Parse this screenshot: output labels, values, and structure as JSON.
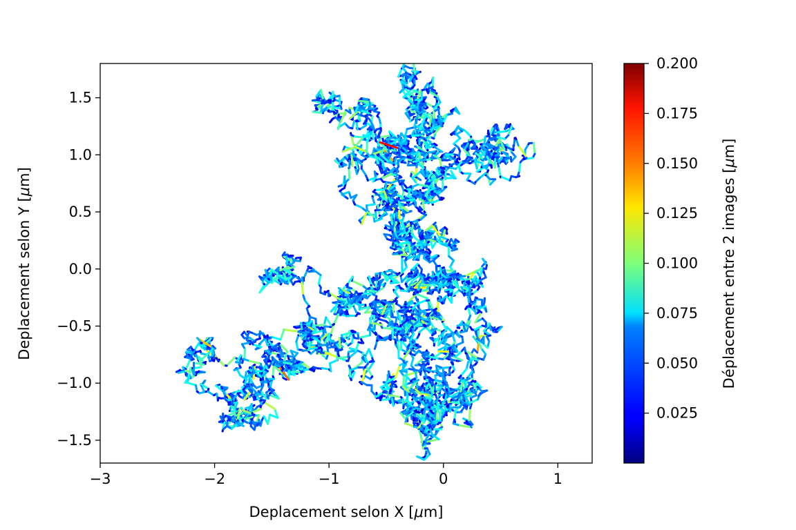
{
  "chart_data": {
    "type": "line",
    "title": "",
    "xlabel_text": "Deplacement selon X [",
    "xlabel_unit": "m]",
    "ylabel_text": "Deplacement selon Y [",
    "ylabel_unit": "m]",
    "mu": "μ",
    "xlim": [
      -3,
      1.3
    ],
    "ylim": [
      -1.7,
      1.8
    ],
    "x_ticks": [
      -3,
      -2,
      -1,
      0,
      1
    ],
    "x_tick_labels": [
      "−3",
      "−2",
      "−1",
      "0",
      "1"
    ],
    "y_ticks": [
      -1.5,
      -1.0,
      -0.5,
      0.0,
      0.5,
      1.0,
      1.5
    ],
    "y_tick_labels": [
      "−1.5",
      "−1.0",
      "−0.5",
      "0.0",
      "0.5",
      "1.0",
      "1.5"
    ],
    "colorbar": {
      "label_text": "Déplacement entre 2 images [",
      "label_unit": "m]",
      "colormap": "jet",
      "range": [
        0.0,
        0.2
      ],
      "ticks": [
        0.025,
        0.05,
        0.075,
        0.1,
        0.125,
        0.15,
        0.175,
        0.2
      ],
      "tick_labels": [
        "0.025",
        "0.050",
        "0.075",
        "0.100",
        "0.125",
        "0.150",
        "0.175",
        "0.200"
      ]
    },
    "trajectory": {
      "description_points": [
        [
          -0.6,
          -0.7
        ],
        [
          -0.2,
          -0.55
        ],
        [
          0.1,
          -0.8
        ],
        [
          -0.1,
          -1.2
        ],
        [
          -0.4,
          -1.0
        ],
        [
          -0.3,
          -0.4
        ],
        [
          0.2,
          -0.3
        ],
        [
          0.4,
          -0.2
        ],
        [
          0.3,
          -0.6
        ],
        [
          0.0,
          -0.2
        ],
        [
          -0.3,
          0.1
        ],
        [
          -0.7,
          -0.1
        ],
        [
          -1.0,
          -0.3
        ],
        [
          -1.3,
          -0.1
        ],
        [
          -1.5,
          0.0
        ],
        [
          -1.1,
          -0.6
        ],
        [
          -0.7,
          -0.8
        ],
        [
          -0.4,
          -1.2
        ],
        [
          -0.2,
          -1.5
        ],
        [
          0.1,
          -1.4
        ],
        [
          0.2,
          -1.1
        ],
        [
          -0.1,
          -0.9
        ],
        [
          -0.5,
          -0.5
        ],
        [
          -0.9,
          -0.4
        ],
        [
          -1.2,
          -0.55
        ],
        [
          -1.6,
          -0.6
        ],
        [
          -2.0,
          -0.7
        ],
        [
          -2.2,
          -0.8
        ],
        [
          -1.9,
          -1.2
        ],
        [
          -1.6,
          -1.1
        ],
        [
          -1.4,
          -0.85
        ],
        [
          -1.7,
          -0.95
        ],
        [
          -2.0,
          -1.3
        ],
        [
          -1.7,
          -1.0
        ],
        [
          -1.3,
          -0.8
        ],
        [
          -0.8,
          -0.6
        ],
        [
          -0.4,
          -0.3
        ],
        [
          -0.2,
          0.0
        ],
        [
          -0.3,
          0.25
        ],
        [
          -0.4,
          0.4
        ],
        [
          -0.5,
          0.65
        ],
        [
          -0.7,
          0.8
        ],
        [
          -0.4,
          0.9
        ],
        [
          -0.6,
          1.1
        ],
        [
          -0.9,
          1.3
        ],
        [
          -1.0,
          1.45
        ],
        [
          -0.7,
          1.3
        ],
        [
          -0.5,
          1.0
        ],
        [
          -0.3,
          0.75
        ],
        [
          -0.1,
          0.6
        ],
        [
          -0.3,
          1.0
        ],
        [
          -0.2,
          1.3
        ],
        [
          -0.3,
          1.6
        ],
        [
          -0.1,
          1.55
        ],
        [
          0.0,
          1.3
        ],
        [
          -0.2,
          1.1
        ],
        [
          0.1,
          1.0
        ],
        [
          0.3,
          1.1
        ],
        [
          0.4,
          1.15
        ],
        [
          0.5,
          0.9
        ],
        [
          0.2,
          0.8
        ],
        [
          -0.1,
          0.85
        ],
        [
          -0.2,
          0.5
        ],
        [
          -0.5,
          0.7
        ],
        [
          -0.3,
          0.4
        ],
        [
          -0.2,
          0.2
        ],
        [
          0.1,
          0.2
        ],
        [
          0.0,
          -0.1
        ],
        [
          -0.2,
          -0.3
        ],
        [
          -0.5,
          -0.6
        ],
        [
          -0.1,
          -0.8
        ],
        [
          -0.3,
          -1.1
        ],
        [
          -0.1,
          -1.35
        ],
        [
          0.2,
          -1.0
        ],
        [
          0.0,
          -0.6
        ]
      ]
    }
  }
}
